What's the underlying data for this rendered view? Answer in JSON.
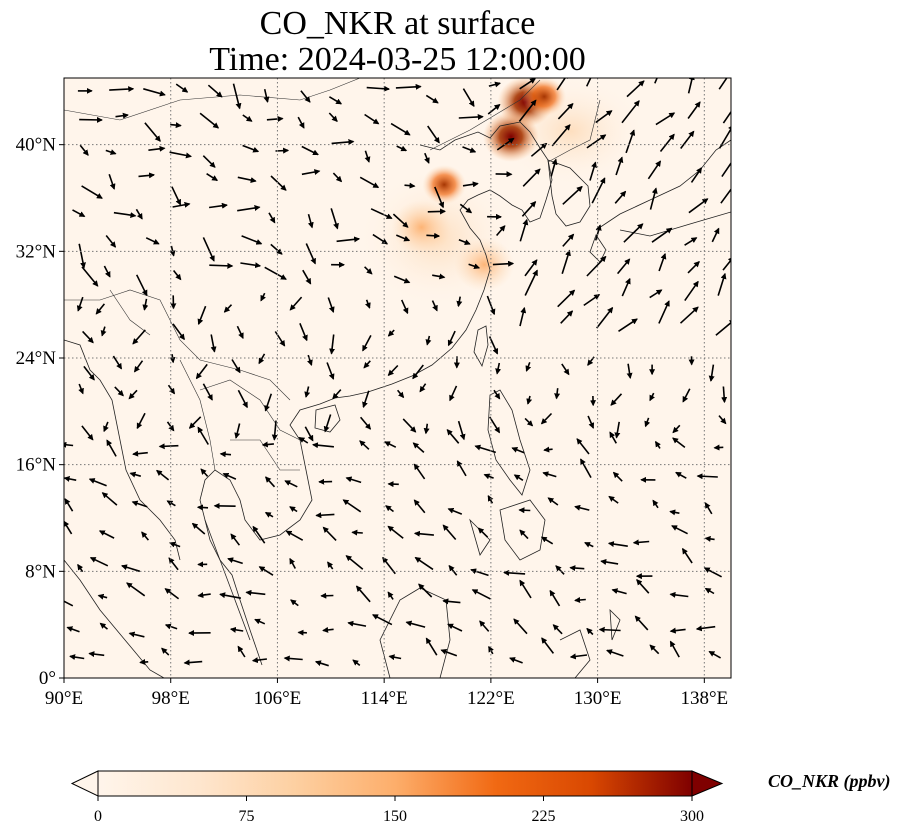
{
  "title_line1": "CO_NKR at surface",
  "title_line2": "Time: 2024-03-25 12:00:00",
  "map": {
    "lon_range": [
      90,
      140
    ],
    "lat_range": [
      0,
      45
    ],
    "lon_ticks": [
      {
        "value": 90,
        "label": "90°E"
      },
      {
        "value": 98,
        "label": "98°E"
      },
      {
        "value": 106,
        "label": "106°E"
      },
      {
        "value": 114,
        "label": "114°E"
      },
      {
        "value": 122,
        "label": "122°E"
      },
      {
        "value": 130,
        "label": "130°E"
      },
      {
        "value": 138,
        "label": "138°E"
      }
    ],
    "lat_ticks": [
      {
        "value": 0,
        "label": "0°"
      },
      {
        "value": 8,
        "label": "8°N"
      },
      {
        "value": 16,
        "label": "16°N"
      },
      {
        "value": 24,
        "label": "24°N"
      },
      {
        "value": 32,
        "label": "32°N"
      },
      {
        "value": 40,
        "label": "40°N"
      }
    ],
    "gridlines": "dotted",
    "background_color": "#fff5eb",
    "hotspots": [
      {
        "lon": 123.5,
        "lat": 40.6,
        "value": 300
      },
      {
        "lon": 124.6,
        "lat": 43.2,
        "value": 280
      },
      {
        "lon": 126.0,
        "lat": 43.6,
        "value": 160
      },
      {
        "lon": 118.5,
        "lat": 37.0,
        "value": 160
      },
      {
        "lon": 116.8,
        "lat": 33.8,
        "value": 110
      },
      {
        "lon": 121.5,
        "lat": 31.0,
        "value": 60
      }
    ]
  },
  "colorbar": {
    "label": "CO_NKR (ppbv)",
    "min": 0,
    "max": 300,
    "ticks": [
      {
        "value": 0,
        "label": "0"
      },
      {
        "value": 75,
        "label": "75"
      },
      {
        "value": 150,
        "label": "150"
      },
      {
        "value": 225,
        "label": "225"
      },
      {
        "value": 300,
        "label": "300"
      }
    ],
    "colormap": [
      "#fff5eb",
      "#fdd9b4",
      "#fdae6b",
      "#f16913",
      "#d94801",
      "#a63603",
      "#7f0000"
    ]
  }
}
